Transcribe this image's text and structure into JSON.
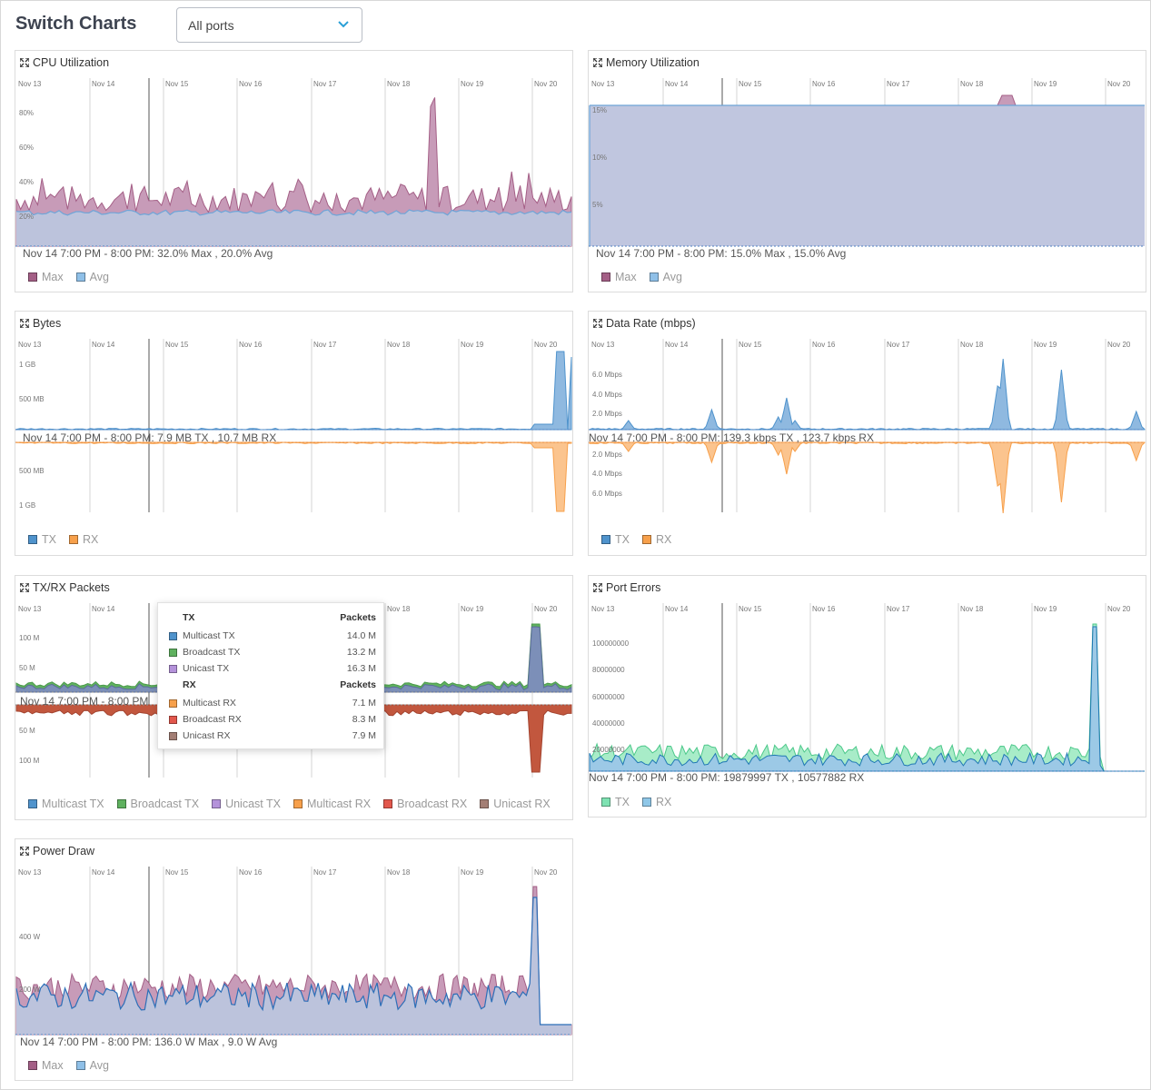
{
  "header": {
    "title": "Switch Charts",
    "port_filter": "All ports"
  },
  "days": [
    "Nov 13",
    "Nov 14",
    "Nov 15",
    "Nov 16",
    "Nov 17",
    "Nov 18",
    "Nov 19",
    "Nov 20"
  ],
  "colors": {
    "max": "#a45f86",
    "avg": "#6ea5d8",
    "area_fill": "#bcc3dc",
    "tx": "#4f93cc",
    "rx": "#f7a04b",
    "multicast_tx": "#4f93cc",
    "broadcast_tx": "#5fb15f",
    "unicast_tx": "#b492da",
    "multicast_rx": "#f7a04b",
    "broadcast_rx": "#e2574c",
    "unicast_rx": "#a37e74",
    "err_tx": "#7ee2b2",
    "err_rx": "#8fc7e8"
  },
  "cards": {
    "cpu": {
      "title": "CPU Utilization",
      "hover": "Nov 14 7:00 PM - 8:00 PM: 32.0% Max , 20.0% Avg",
      "legend": [
        "Max",
        "Avg"
      ],
      "y_ticks": [
        "80%",
        "60%",
        "40%",
        "20%"
      ]
    },
    "memory": {
      "title": "Memory Utilization",
      "hover": "Nov 14 7:00 PM - 8:00 PM: 15.0% Max , 15.0% Avg",
      "legend": [
        "Max",
        "Avg"
      ],
      "y_ticks": [
        "15%",
        "10%",
        "5%"
      ]
    },
    "bytes": {
      "title": "Bytes",
      "hover": "Nov 14 7:00 PM - 8:00 PM: 7.9 MB TX , 10.7 MB RX",
      "legend": [
        "TX",
        "RX"
      ],
      "y_ticks_top": [
        "1 GB",
        "500 MB"
      ],
      "y_ticks_bottom": [
        "500 MB",
        "1 GB"
      ]
    },
    "datarate": {
      "title": "Data Rate (mbps)",
      "hover": "Nov 14 7:00 PM - 8:00 PM: 139.3 kbps TX , 123.7 kbps RX",
      "legend": [
        "TX",
        "RX"
      ],
      "y_ticks_top": [
        "6.0 Mbps",
        "4.0 Mbps",
        "2.0 Mbps"
      ],
      "y_ticks_bottom": [
        "2.0 Mbps",
        "4.0 Mbps",
        "6.0 Mbps"
      ]
    },
    "packets": {
      "title": "TX/RX Packets",
      "hover": "Nov 14 7:00 PM - 8:00 PM",
      "legend": [
        "Multicast TX",
        "Broadcast TX",
        "Unicast TX",
        "Multicast RX",
        "Broadcast RX",
        "Unicast RX"
      ],
      "y_ticks_top": [
        "100 M",
        "50 M"
      ],
      "y_ticks_bottom": [
        "50 M",
        "100 M"
      ],
      "tooltip": {
        "tx_header": "TX",
        "rx_header": "RX",
        "value_header": "Packets",
        "rows_tx": [
          {
            "label": "Multicast TX",
            "value": "14.0 M"
          },
          {
            "label": "Broadcast TX",
            "value": "13.2 M"
          },
          {
            "label": "Unicast TX",
            "value": "16.3 M"
          }
        ],
        "rows_rx": [
          {
            "label": "Multicast RX",
            "value": "7.1 M"
          },
          {
            "label": "Broadcast RX",
            "value": "8.3 M"
          },
          {
            "label": "Unicast RX",
            "value": "7.9 M"
          }
        ]
      }
    },
    "errors": {
      "title": "Port Errors",
      "hover": "Nov 14 7:00 PM - 8:00 PM: 19879997 TX , 10577882 RX",
      "legend": [
        "TX",
        "RX"
      ],
      "y_ticks": [
        "100000000",
        "80000000",
        "60000000",
        "40000000",
        "20000000"
      ]
    },
    "power": {
      "title": "Power Draw",
      "hover": "Nov 14 7:00 PM - 8:00 PM: 136.0 W Max , 9.0 W Avg",
      "legend": [
        "Max",
        "Avg"
      ],
      "y_ticks": [
        "400 W",
        "200 W"
      ]
    }
  }
}
